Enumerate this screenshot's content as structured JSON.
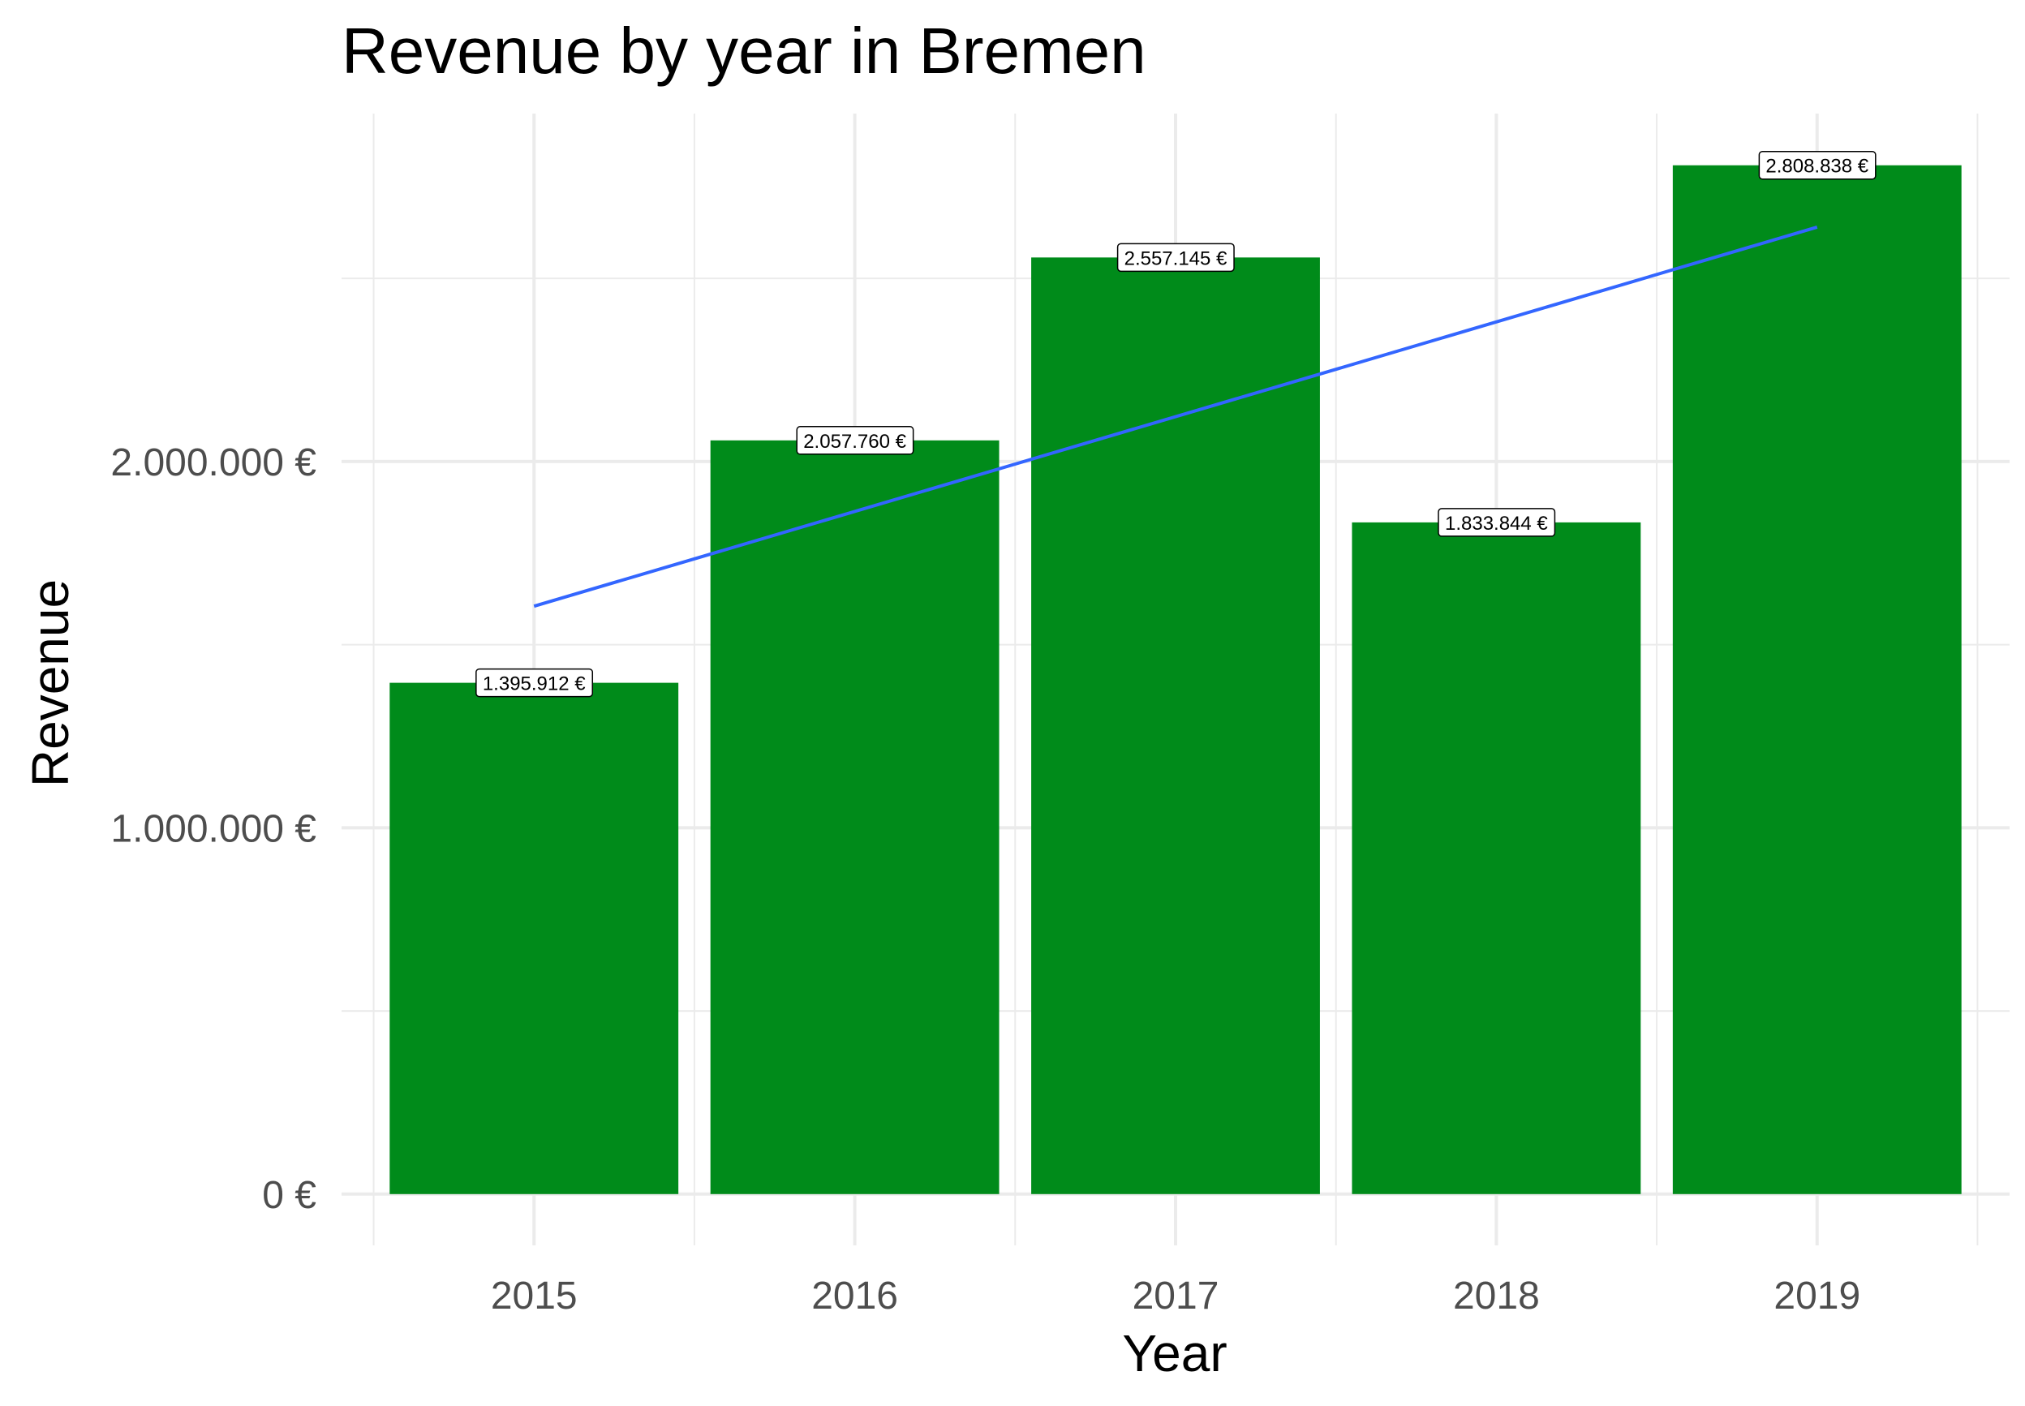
{
  "chart_data": {
    "type": "bar",
    "title": "Revenue by year in Bremen",
    "xlabel": "Year",
    "ylabel": "Revenue",
    "categories": [
      "2015",
      "2016",
      "2017",
      "2018",
      "2019"
    ],
    "values": [
      1395912,
      2057760,
      2557145,
      1833844,
      2808838
    ],
    "data_labels": [
      "1.395.912 €",
      "2.057.760 €",
      "2.557.145 €",
      "1.833.844 €",
      "2.808.838 €"
    ],
    "y_ticks": [
      0,
      1000000,
      2000000
    ],
    "y_tick_labels": [
      "0 €",
      "1.000.000 €",
      "2.000.000 €"
    ],
    "ylim": [
      -140000,
      2950000
    ],
    "grid": true,
    "legend": "none",
    "bar_color": "#008b1a",
    "trend_line": {
      "type": "linear",
      "color": "#3366ff",
      "start": 1605000,
      "end": 2640000
    }
  }
}
